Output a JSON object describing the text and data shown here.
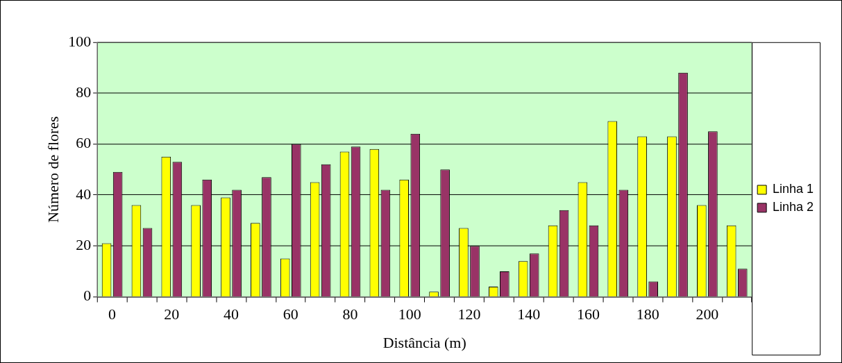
{
  "chart_data": {
    "type": "bar",
    "xlabel": "Distância (m)",
    "ylabel": "Número de flores",
    "categories": [
      "0",
      null,
      "20",
      null,
      "40",
      null,
      "60",
      null,
      "80",
      null,
      "100",
      null,
      "120",
      null,
      "140",
      null,
      "160",
      null,
      "180",
      null,
      "200",
      null
    ],
    "series": [
      {
        "name": "Linha 1",
        "color": "#ffff00",
        "values": [
          21,
          36,
          55,
          36,
          39,
          29,
          15,
          45,
          57,
          58,
          46,
          2,
          27,
          4,
          14,
          28,
          45,
          69,
          63,
          63,
          36,
          28
        ]
      },
      {
        "name": "Linha 2",
        "color": "#993366",
        "values": [
          49,
          27,
          53,
          46,
          42,
          47,
          60,
          52,
          59,
          42,
          64,
          50,
          20,
          10,
          17,
          34,
          28,
          42,
          6,
          88,
          65,
          11
        ]
      }
    ],
    "ylim": [
      0,
      100
    ],
    "yticks": [
      0,
      20,
      40,
      60,
      80,
      100
    ],
    "grid": "y",
    "legend": "right"
  }
}
